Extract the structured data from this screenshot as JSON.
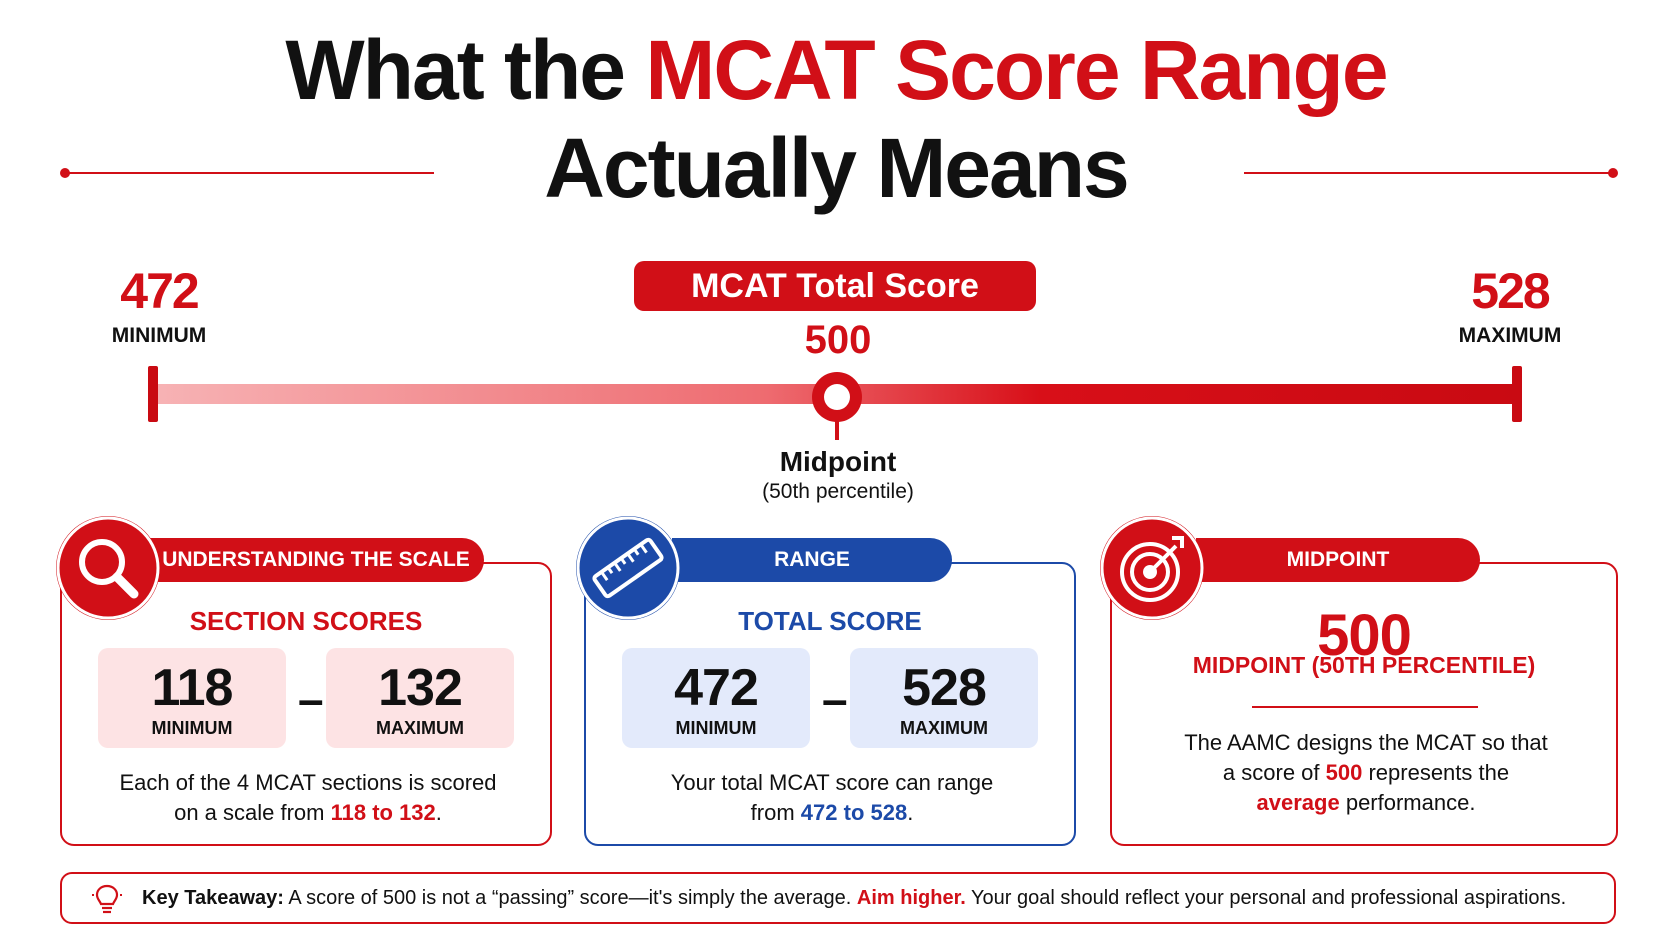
{
  "title": {
    "part1": "What the ",
    "highlight": "MCAT Score Range",
    "line2": "Actually Means"
  },
  "scale": {
    "min_value": "472",
    "min_label": "MINIMUM",
    "max_value": "528",
    "max_label": "MAXIMUM",
    "pill_label": "MCAT Total Score",
    "mid_value": "500",
    "mid_label": "Midpoint",
    "mid_sub": "(50th percentile)"
  },
  "cards": {
    "scale_card": {
      "tab": "UNDERSTANDING THE SCALE",
      "icon": "magnifier-icon",
      "subtitle": "SECTION SCORES",
      "min_value": "118",
      "min_label": "MINIMUM",
      "max_value": "132",
      "max_label": "MAXIMUM",
      "dash": "–",
      "text_a": "Each of the 4 MCAT sections is scored",
      "text_b": "on a scale from ",
      "text_highlight": "118 to 132",
      "text_end": "."
    },
    "range_card": {
      "tab": "RANGE",
      "icon": "ruler-icon",
      "subtitle": "TOTAL SCORE",
      "min_value": "472",
      "min_label": "MINIMUM",
      "max_value": "528",
      "max_label": "MAXIMUM",
      "dash": "–",
      "text_a": "Your total MCAT score can range",
      "text_b": "from ",
      "text_highlight": "472 to 528",
      "text_end": "."
    },
    "midpoint_card": {
      "tab": "MIDPOINT",
      "icon": "target-icon",
      "value": "500",
      "caption": "MIDPOINT (50TH PERCENTILE)",
      "text_a": "The AAMC designs the MCAT so that",
      "text_b1": "a score of ",
      "text_b_highlight": "500",
      "text_b2": " represents the",
      "text_c_highlight": "average",
      "text_c2": " performance."
    }
  },
  "takeaway": {
    "icon": "lightbulb-icon",
    "label": "Key Takeaway:",
    "text1": " A score of 500 is not a “passing” score—it's simply the average. ",
    "highlight": "Aim higher.",
    "text2": " Your goal should reflect your personal and professional aspirations."
  },
  "colors": {
    "accent_red": "#d10f17",
    "accent_blue": "#1c4aa8",
    "red_box": "#fde3e4",
    "blue_box": "#e3eafb"
  }
}
